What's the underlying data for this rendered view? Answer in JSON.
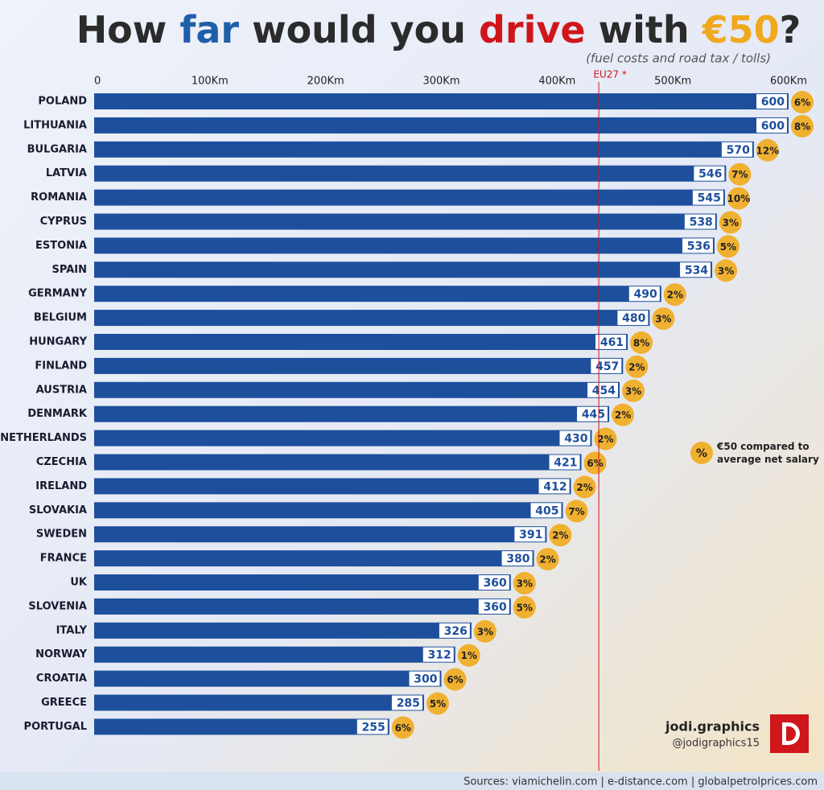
{
  "chart_data": {
    "type": "hbar",
    "title_parts": [
      "How ",
      "far",
      " would you ",
      "drive",
      " with ",
      "€50",
      "?"
    ],
    "title_colors": [
      "#2b2b2b",
      "#1f5fa8",
      "#2b2b2b",
      "#d0161b",
      "#2b2b2b",
      "#f0a81e",
      "#2b2b2b"
    ],
    "subtitle": "(fuel costs and road tax / tolls)",
    "categories": [
      "POLAND",
      "LITHUANIA",
      "BULGARIA",
      "LATVIA",
      "ROMANIA",
      "CYPRUS",
      "ESTONIA",
      "SPAIN",
      "GERMANY",
      "BELGIUM",
      "HUNGARY",
      "FINLAND",
      "AUSTRIA",
      "DENMARK",
      "NETHERLANDS",
      "CZECHIA",
      "IRELAND",
      "SLOVAKIA",
      "SWEDEN",
      "FRANCE",
      "UK",
      "SLOVENIA",
      "ITALY",
      "NORWAY",
      "CROATIA",
      "GREECE",
      "PORTUGAL"
    ],
    "values": [
      600,
      600,
      570,
      546,
      545,
      538,
      536,
      534,
      490,
      480,
      461,
      457,
      454,
      445,
      430,
      421,
      412,
      405,
      391,
      380,
      360,
      360,
      326,
      312,
      300,
      285,
      255
    ],
    "color": "#1d4f9c",
    "salary_share": {
      "name": "€50 compared to average net salary",
      "symbol": "%",
      "color": "#f0b030",
      "values": [
        6,
        8,
        12,
        7,
        10,
        3,
        5,
        3,
        2,
        3,
        8,
        2,
        3,
        2,
        2,
        6,
        2,
        7,
        2,
        2,
        3,
        5,
        3,
        1,
        6,
        5,
        6
      ],
      "value_labels": [
        "6%",
        "8%",
        "12%",
        "7%",
        "10%",
        "3%",
        "5%",
        "3%",
        "2%",
        "3%",
        "8%",
        "2%",
        "3%",
        "2%",
        "2%",
        "6%",
        "2%",
        "7%",
        "2%",
        "2%",
        "3%",
        "5%",
        "3%",
        "1%",
        "6%",
        "5%",
        "6%"
      ]
    },
    "xlim": [
      0,
      600
    ],
    "xticks": [
      0,
      {
        "value": 100,
        "label": "100Km"
      },
      {
        "value": 200,
        "label": "200Km"
      },
      {
        "value": 300,
        "label": "300Km"
      },
      {
        "value": 400,
        "label": "400Km"
      },
      {
        "value": 500,
        "label": "500Km"
      },
      {
        "value": 600,
        "label": "600Km"
      }
    ],
    "reference_line": {
      "value": 436,
      "label": "EU27 *",
      "color": "#d0161b"
    },
    "brand": {
      "name": "jodi.graphics",
      "handle": "@jodigraphics15"
    },
    "sources": "Sources: viamichelin.com | e-distance.com | globalpetrolprices.com"
  }
}
